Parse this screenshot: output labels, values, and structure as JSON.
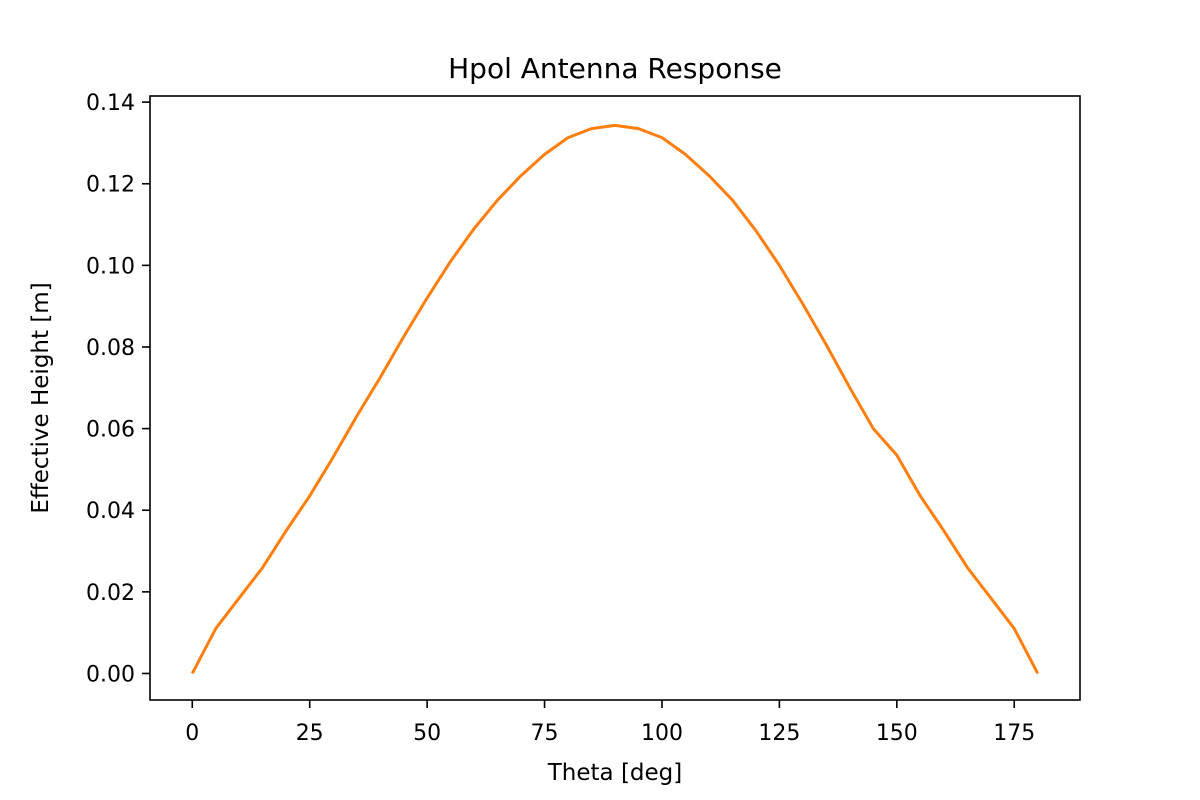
{
  "chart_data": {
    "type": "line",
    "title": "Hpol Antenna Response",
    "xlabel": "Theta [deg]",
    "ylabel": "Effective Height [m]",
    "xlim": [
      -9,
      189
    ],
    "ylim": [
      -0.0065,
      0.1415
    ],
    "xticks": [
      0,
      25,
      50,
      75,
      100,
      125,
      150,
      175
    ],
    "xtick_labels": [
      "0",
      "25",
      "50",
      "75",
      "100",
      "125",
      "150",
      "175"
    ],
    "yticks": [
      0.0,
      0.02,
      0.04,
      0.06,
      0.08,
      0.1,
      0.12,
      0.14
    ],
    "ytick_labels": [
      "0.00",
      "0.02",
      "0.04",
      "0.06",
      "0.08",
      "0.10",
      "0.12",
      "0.14"
    ],
    "grid": false,
    "series": [
      {
        "color": "#ff7f0e",
        "x": [
          0,
          5,
          10,
          15,
          20,
          25,
          30,
          35,
          40,
          45,
          50,
          55,
          60,
          65,
          70,
          75,
          80,
          85,
          90,
          95,
          100,
          105,
          110,
          115,
          120,
          125,
          130,
          135,
          140,
          145,
          150,
          155,
          160,
          165,
          170,
          175,
          180
        ],
        "y": [
          0.0,
          0.011,
          0.0185,
          0.026,
          0.035,
          0.0435,
          0.053,
          0.063,
          0.0725,
          0.0825,
          0.092,
          0.101,
          0.109,
          0.116,
          0.122,
          0.1272,
          0.1313,
          0.1335,
          0.1343,
          0.1335,
          0.1313,
          0.1272,
          0.122,
          0.116,
          0.1085,
          0.1,
          0.0905,
          0.0805,
          0.07,
          0.06,
          0.0535,
          0.0435,
          0.035,
          0.026,
          0.0185,
          0.011,
          0.0
        ]
      }
    ]
  }
}
